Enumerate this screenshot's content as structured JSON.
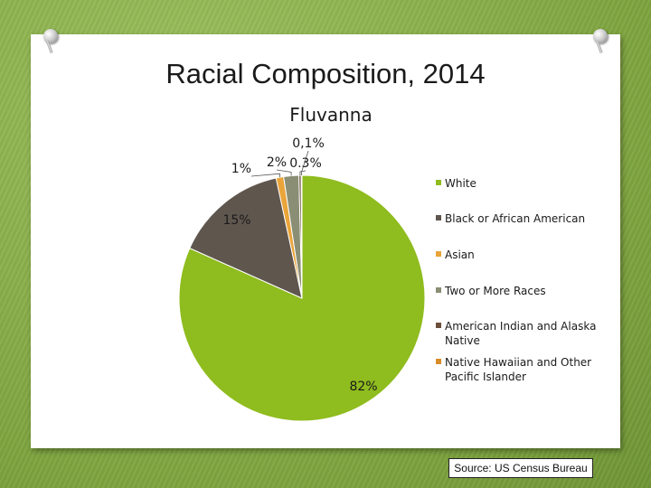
{
  "slide": {
    "title": "Racial Composition, 2014",
    "source": "Source: US Census Bureau"
  },
  "chart_data": {
    "type": "pie",
    "title": "Fluvanna",
    "slices": [
      {
        "name": "White",
        "value": 82,
        "label": "82%",
        "color": "#8fbc1e"
      },
      {
        "name": "Black or African American",
        "value": 15,
        "label": "15%",
        "color": "#5f564e"
      },
      {
        "name": "Asian",
        "value": 1,
        "label": "1%",
        "color": "#e9a43a"
      },
      {
        "name": "Two or More Races",
        "value": 2,
        "label": "2%",
        "color": "#8a8e74"
      },
      {
        "name": "American Indian and Alaska Native",
        "value": 0.3,
        "label": "0.3%",
        "color": "#6b4f3a"
      },
      {
        "name": "Native Hawaiian and Other Pacific Islander",
        "value": 0.1,
        "label": "0,1%",
        "color": "#d98c2a"
      }
    ],
    "legend": {
      "placement": "right",
      "entries": [
        [
          "White"
        ],
        [
          "Black or African American"
        ],
        [
          "Asian"
        ],
        [
          "Two or More Races"
        ],
        [
          "American Indian and Alaska",
          "Native"
        ],
        [
          "Native Hawaiian and Other",
          "Pacific Islander"
        ]
      ]
    }
  }
}
